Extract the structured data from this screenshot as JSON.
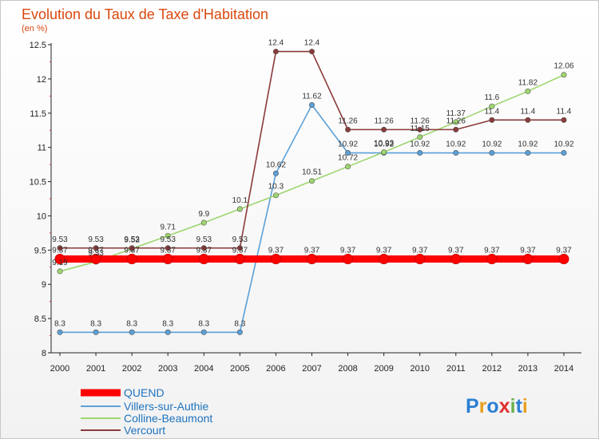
{
  "chart_data": {
    "type": "line",
    "title": "Evolution du Taux de Taxe d'Habitation",
    "subtitle": "(en %)",
    "xlabel": "",
    "ylabel": "",
    "x": [
      "2000",
      "2001",
      "2002",
      "2003",
      "2004",
      "2005",
      "2006",
      "2007",
      "2008",
      "2009",
      "2010",
      "2011",
      "2012",
      "2013",
      "2014"
    ],
    "ylim": [
      8,
      12.5
    ],
    "yticks": [
      "8",
      "8.5",
      "9",
      "9.5",
      "10",
      "10.5",
      "11",
      "11.5",
      "12",
      "12.5"
    ],
    "grid": false,
    "legend_position": "bottom-left",
    "series": [
      {
        "name": "QUEND",
        "color": "#ff0000",
        "values": [
          9.37,
          9.37,
          9.37,
          9.37,
          9.37,
          9.37,
          9.37,
          9.37,
          9.37,
          9.37,
          9.37,
          9.37,
          9.37,
          9.37,
          9.37
        ],
        "labels": [
          "9.37",
          "9.37",
          "9.37",
          "9.37",
          "9.37",
          "9.37",
          "9.37",
          "9.37",
          "9.37",
          "9.37",
          "9.37",
          "9.37",
          "9.37",
          "9.37",
          "9.37"
        ]
      },
      {
        "name": "Villers-sur-Authie",
        "color": "#5aa0d8",
        "values": [
          8.3,
          8.3,
          8.3,
          8.3,
          8.3,
          8.3,
          10.62,
          11.62,
          10.92,
          10.92,
          10.92,
          10.92,
          10.92,
          10.92,
          10.92
        ],
        "labels": [
          "8.3",
          "8.3",
          "8.3",
          "8.3",
          "8.3",
          "8.3",
          "10.62",
          "11.62",
          "10.92",
          "10.92",
          "10.92",
          "10.92",
          "10.92",
          "10.92",
          "10.92"
        ]
      },
      {
        "name": "Colline-Beaumont",
        "color": "#9ed66e",
        "values": [
          9.19,
          9.33,
          9.52,
          9.71,
          9.9,
          10.1,
          10.3,
          10.51,
          10.72,
          10.93,
          11.15,
          11.37,
          11.6,
          11.82,
          12.06
        ],
        "labels": [
          "9.19",
          "9.33",
          "9.52",
          "9.71",
          "9.9",
          "10.1",
          "10.3",
          "10.51",
          "10.72",
          "10.93",
          "11.15",
          "11.37",
          "11.6",
          "11.82",
          "12.06"
        ]
      },
      {
        "name": "Vercourt",
        "color": "#8b3a3a",
        "values": [
          9.53,
          9.53,
          9.53,
          9.53,
          9.53,
          9.53,
          12.4,
          12.4,
          11.26,
          11.26,
          11.26,
          11.26,
          11.4,
          11.4,
          11.4
        ],
        "labels": [
          "9.53",
          "9.53",
          "9.53",
          "9.53",
          "9.53",
          "9.53",
          "12.4",
          "12.4",
          "11.26",
          "11.26",
          "11.26",
          "11.26",
          "11.4",
          "11.4",
          "11.4"
        ]
      }
    ]
  },
  "logo_text": "Proxiti"
}
